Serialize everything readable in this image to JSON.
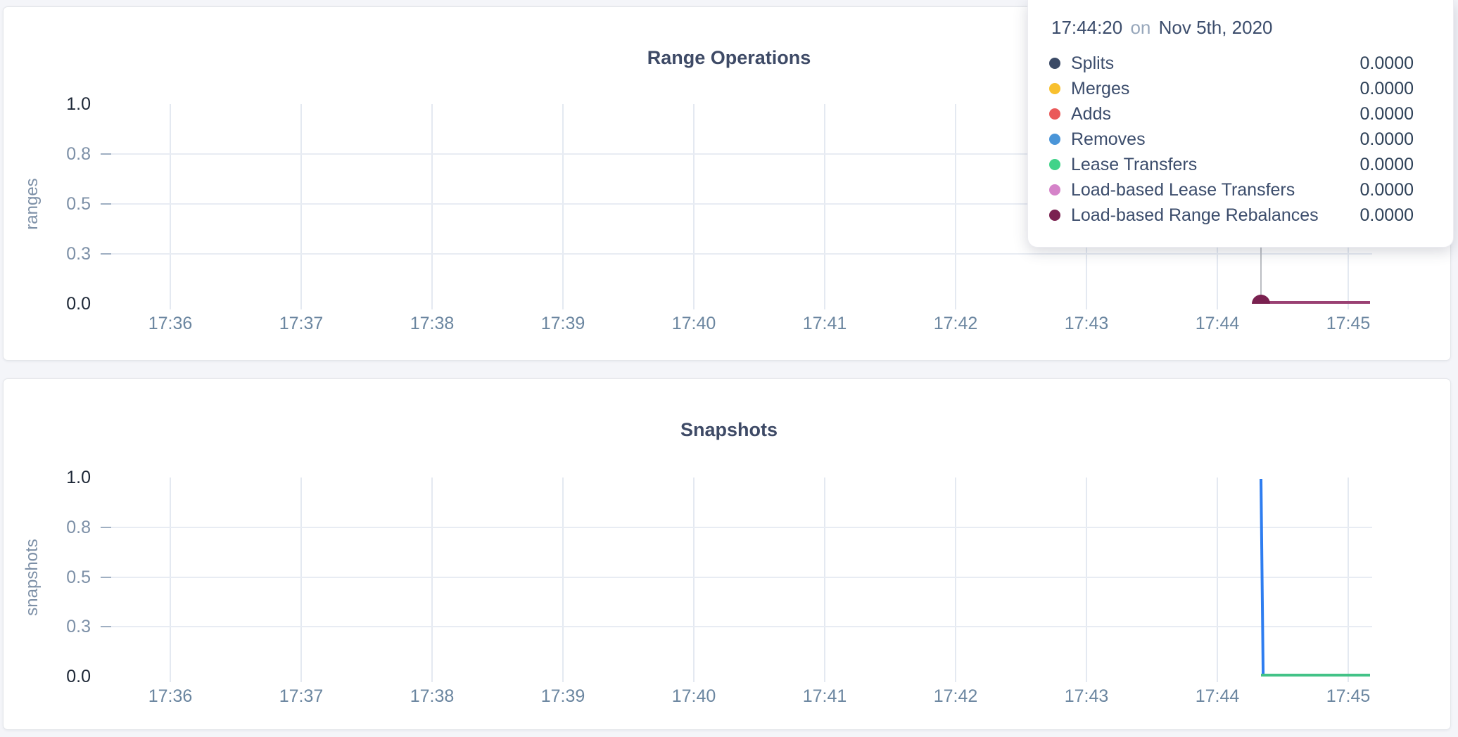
{
  "colors": {
    "background": "#f4f5f9",
    "card_border": "#e4e6ea",
    "title_text": "#3e4a66",
    "axis_label_strong": "#1d2736",
    "axis_label_light": "#7d90a7",
    "x_label_text": "#6b86a0",
    "gridline": "#e4e9f1",
    "axis_tick": "#9fafc2",
    "hover_line": "#bbbec3",
    "hover_dot": "#7a2150"
  },
  "tooltip": {
    "time": "17:44:20",
    "connector": "on",
    "date": "Nov 5th, 2020",
    "rows": [
      {
        "label": "Splits",
        "value": "0.0000",
        "color": "#3b4a66"
      },
      {
        "label": "Merges",
        "value": "0.0000",
        "color": "#f8c02e"
      },
      {
        "label": "Adds",
        "value": "0.0000",
        "color": "#ea5a5a"
      },
      {
        "label": "Removes",
        "value": "0.0000",
        "color": "#4a95d8"
      },
      {
        "label": "Lease Transfers",
        "value": "0.0000",
        "color": "#41d389"
      },
      {
        "label": "Load-based Lease Transfers",
        "value": "0.0000",
        "color": "#d583c9"
      },
      {
        "label": "Load-based Range Rebalances",
        "value": "0.0000",
        "color": "#7a2150"
      }
    ]
  },
  "chart_data": [
    {
      "type": "line",
      "title": "Range Operations",
      "ylabel": "ranges",
      "xlabel": "",
      "x_tick_labels": [
        "17:36",
        "17:37",
        "17:38",
        "17:39",
        "17:40",
        "17:41",
        "17:42",
        "17:43",
        "17:44",
        "17:45"
      ],
      "y_tick_labels": [
        "1.0",
        "0.8",
        "0.5",
        "0.3",
        "0.0"
      ],
      "ylim": [
        0,
        1
      ],
      "grid": true,
      "legend_position": "tooltip",
      "hover": {
        "time": "17:44:20"
      },
      "series": [
        {
          "name": "Splits",
          "color": "#3b4a66",
          "points": [
            {
              "t": "17:44:20",
              "v": 0
            },
            {
              "t": "17:45:10",
              "v": 0
            }
          ]
        },
        {
          "name": "Merges",
          "color": "#f8c02e",
          "points": [
            {
              "t": "17:44:20",
              "v": 0
            },
            {
              "t": "17:45:10",
              "v": 0
            }
          ]
        },
        {
          "name": "Adds",
          "color": "#ea5a5a",
          "points": [
            {
              "t": "17:44:20",
              "v": 0
            },
            {
              "t": "17:45:10",
              "v": 0
            }
          ]
        },
        {
          "name": "Removes",
          "color": "#4a95d8",
          "points": [
            {
              "t": "17:44:20",
              "v": 0
            },
            {
              "t": "17:45:10",
              "v": 0
            }
          ]
        },
        {
          "name": "Lease Transfers",
          "color": "#41d389",
          "points": [
            {
              "t": "17:44:20",
              "v": 0
            },
            {
              "t": "17:45:10",
              "v": 0
            }
          ]
        },
        {
          "name": "Load-based Lease Transfers",
          "color": "#d583c9",
          "points": [
            {
              "t": "17:44:20",
              "v": 0
            },
            {
              "t": "17:45:10",
              "v": 0
            }
          ]
        },
        {
          "name": "Load-based Range Rebalances",
          "color": "#9a4173",
          "points": [
            {
              "t": "17:44:20",
              "v": 0
            },
            {
              "t": "17:45:10",
              "v": 0
            }
          ]
        }
      ]
    },
    {
      "type": "line",
      "title": "Snapshots",
      "ylabel": "snapshots",
      "xlabel": "",
      "x_tick_labels": [
        "17:36",
        "17:37",
        "17:38",
        "17:39",
        "17:40",
        "17:41",
        "17:42",
        "17:43",
        "17:44",
        "17:45"
      ],
      "y_tick_labels": [
        "1.0",
        "0.8",
        "0.5",
        "0.3",
        "0.0"
      ],
      "ylim": [
        0,
        1
      ],
      "grid": true,
      "series": [
        {
          "name": "series-blue",
          "color": "#2e7df0",
          "points": [
            {
              "t": "17:44:20",
              "v": 1
            },
            {
              "t": "17:44:21",
              "v": 0
            }
          ]
        },
        {
          "name": "series-green",
          "color": "#43c287",
          "points": [
            {
              "t": "17:44:20",
              "v": 0
            },
            {
              "t": "17:45:10",
              "v": 0
            }
          ]
        }
      ]
    }
  ]
}
